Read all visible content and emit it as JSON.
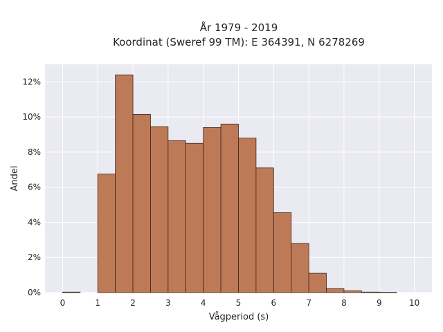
{
  "chart_data": {
    "type": "bar",
    "title_line1": "År 1979 - 2019",
    "title_line2": "Koordinat (Sweref 99 TM): E 364391, N 6278269",
    "xlabel": "Vågperiod (s)",
    "ylabel": "Andel",
    "xlim": [
      -0.5,
      10.5
    ],
    "ylim": [
      0,
      13.0
    ],
    "x_ticks": [
      0,
      1,
      2,
      3,
      4,
      5,
      6,
      7,
      8,
      9,
      10
    ],
    "x_tick_labels": [
      "0",
      "1",
      "2",
      "3",
      "4",
      "5",
      "6",
      "7",
      "8",
      "9",
      "10"
    ],
    "y_ticks": [
      0,
      2,
      4,
      6,
      8,
      10,
      12
    ],
    "y_tick_labels": [
      "0%",
      "2%",
      "4%",
      "6%",
      "8%",
      "10%",
      "12%"
    ],
    "bin_width": 0.5,
    "bins": [
      {
        "x0": 0.0,
        "x1": 0.5,
        "value": 0.03
      },
      {
        "x0": 0.5,
        "x1": 1.0,
        "value": 0.0
      },
      {
        "x0": 1.0,
        "x1": 1.5,
        "value": 6.75
      },
      {
        "x0": 1.5,
        "x1": 2.0,
        "value": 12.4
      },
      {
        "x0": 2.0,
        "x1": 2.5,
        "value": 10.15
      },
      {
        "x0": 2.5,
        "x1": 3.0,
        "value": 9.45
      },
      {
        "x0": 3.0,
        "x1": 3.5,
        "value": 8.65
      },
      {
        "x0": 3.5,
        "x1": 4.0,
        "value": 8.5
      },
      {
        "x0": 4.0,
        "x1": 4.5,
        "value": 9.4
      },
      {
        "x0": 4.5,
        "x1": 5.0,
        "value": 9.6
      },
      {
        "x0": 5.0,
        "x1": 5.5,
        "value": 8.8
      },
      {
        "x0": 5.5,
        "x1": 6.0,
        "value": 7.1
      },
      {
        "x0": 6.0,
        "x1": 6.5,
        "value": 4.55
      },
      {
        "x0": 6.5,
        "x1": 7.0,
        "value": 2.8
      },
      {
        "x0": 7.0,
        "x1": 7.5,
        "value": 1.1
      },
      {
        "x0": 7.5,
        "x1": 8.0,
        "value": 0.22
      },
      {
        "x0": 8.0,
        "x1": 8.5,
        "value": 0.1
      },
      {
        "x0": 8.5,
        "x1": 9.0,
        "value": 0.03
      },
      {
        "x0": 9.0,
        "x1": 9.5,
        "value": 0.02
      }
    ],
    "grid": true,
    "colors": {
      "bar_fill": "#bd7a56",
      "bar_edge": "#3d2418",
      "plot_background": "#eaeaf2",
      "grid": "#ffffff"
    }
  }
}
